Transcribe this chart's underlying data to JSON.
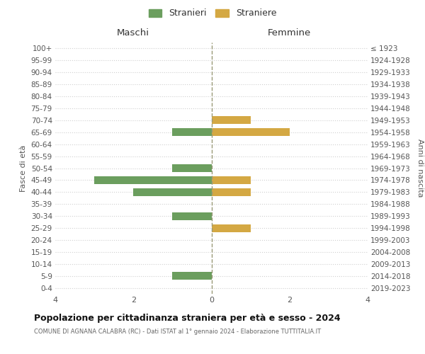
{
  "age_groups": [
    "100+",
    "95-99",
    "90-94",
    "85-89",
    "80-84",
    "75-79",
    "70-74",
    "65-69",
    "60-64",
    "55-59",
    "50-54",
    "45-49",
    "40-44",
    "35-39",
    "30-34",
    "25-29",
    "20-24",
    "15-19",
    "10-14",
    "5-9",
    "0-4"
  ],
  "birth_years": [
    "≤ 1923",
    "1924-1928",
    "1929-1933",
    "1934-1938",
    "1939-1943",
    "1944-1948",
    "1949-1953",
    "1954-1958",
    "1959-1963",
    "1964-1968",
    "1969-1973",
    "1974-1978",
    "1979-1983",
    "1984-1988",
    "1989-1993",
    "1994-1998",
    "1999-2003",
    "2004-2008",
    "2009-2013",
    "2014-2018",
    "2019-2023"
  ],
  "maschi": [
    0,
    0,
    0,
    0,
    0,
    0,
    0,
    1,
    0,
    0,
    1,
    3,
    2,
    0,
    1,
    0,
    0,
    0,
    0,
    1,
    0
  ],
  "femmine": [
    0,
    0,
    0,
    0,
    0,
    0,
    1,
    2,
    0,
    0,
    0,
    1,
    1,
    0,
    0,
    1,
    0,
    0,
    0,
    0,
    0
  ],
  "color_maschi": "#6b9e5e",
  "color_femmine": "#d4a843",
  "xlim": 4,
  "title": "Popolazione per cittadinanza straniera per età e sesso - 2024",
  "subtitle": "COMUNE DI AGNANA CALABRA (RC) - Dati ISTAT al 1° gennaio 2024 - Elaborazione TUTTITALIA.IT",
  "label_maschi": "Stranieri",
  "label_femmine": "Straniere",
  "header_left": "Maschi",
  "header_right": "Femmine",
  "ylabel_left": "Fasce di età",
  "ylabel_right": "Anni di nascita",
  "background_color": "#ffffff",
  "grid_color": "#d0d0d0",
  "bar_height": 0.65
}
